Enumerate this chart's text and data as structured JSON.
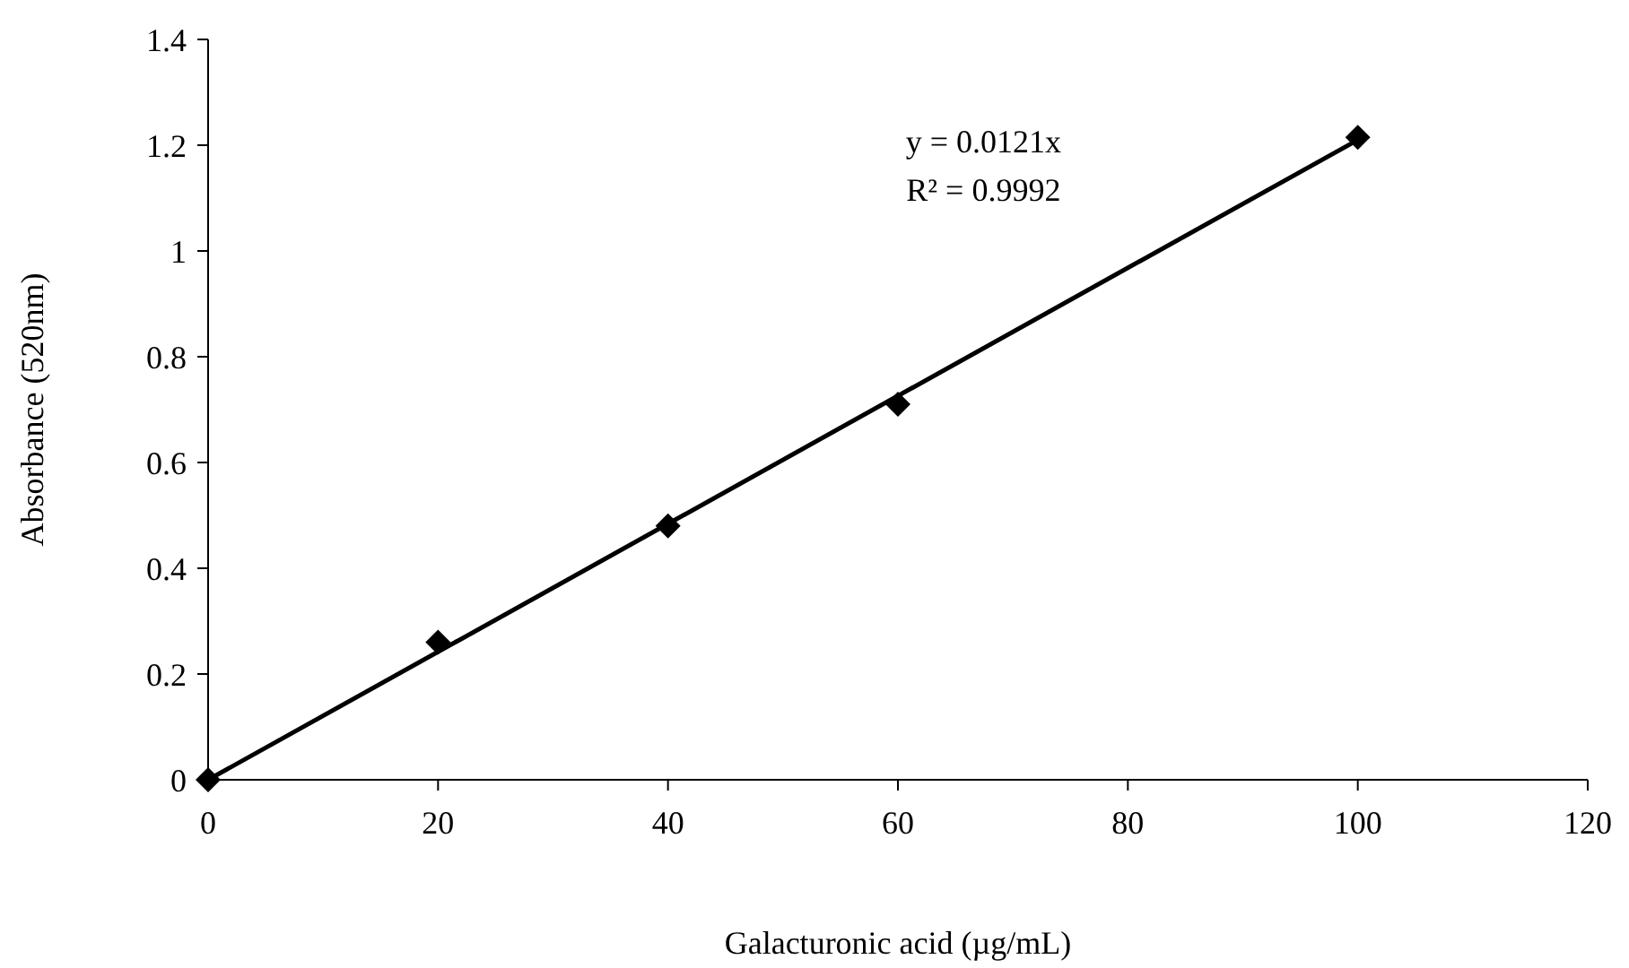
{
  "chart_data": {
    "type": "scatter",
    "xlabel": "Galacturonic acid (µg/mL)",
    "ylabel": "Absorbance (520nm)",
    "series": [
      {
        "color": "#000000",
        "x": [
          0,
          20,
          40,
          60,
          100
        ],
        "values": [
          0,
          0.26,
          0.48,
          0.71,
          1.215
        ],
        "marker": "diamond"
      },
      {
        "type": "line",
        "color": "#000000",
        "x": [
          0,
          100
        ],
        "values": [
          0,
          1.21
        ],
        "marker": "none"
      }
    ],
    "xlim": [
      0,
      120
    ],
    "xticks": [
      0,
      20,
      40,
      60,
      80,
      100,
      120
    ],
    "ylim": [
      0,
      1.4
    ],
    "yticks": [
      0,
      0.2,
      0.4,
      0.6,
      0.8,
      1,
      1.2,
      1.4
    ],
    "grid": false,
    "annotations": [
      "y = 0.0121x",
      "R² = 0.9992"
    ]
  }
}
